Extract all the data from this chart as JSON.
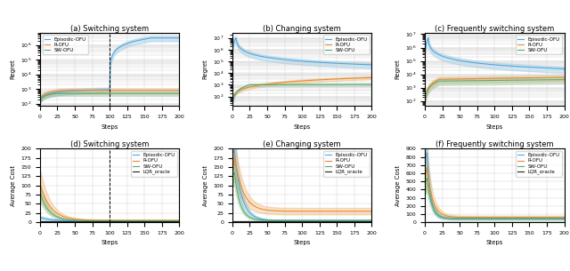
{
  "fig_width": 6.4,
  "fig_height": 3.05,
  "dpi": 100,
  "colors": {
    "episodic": "#4EA8DE",
    "r": "#E88D2A",
    "sw": "#5BAD6F",
    "lqr": "#222222"
  },
  "alpha_fill": 0.25,
  "top_row_ylabel": "Regret",
  "bot_row_ylabel": "Average Cost",
  "xlabel": "Steps",
  "top_titles": [
    "(a) Switching system",
    "(b) Changing system",
    "(c) Frequently switching system"
  ],
  "bot_titles": [
    "(d) Switching system",
    "(e) Changing system",
    "(f) Frequently switching system"
  ],
  "top_legend_labels": [
    "Episodic-OFU",
    "R-OFU",
    "SW-OFU"
  ],
  "bot_legend_labels": [
    "Episodic-OFU",
    "R-OFU",
    "SW-OFU",
    "LQR_oracle"
  ],
  "steps": 200,
  "switch_point": 100
}
